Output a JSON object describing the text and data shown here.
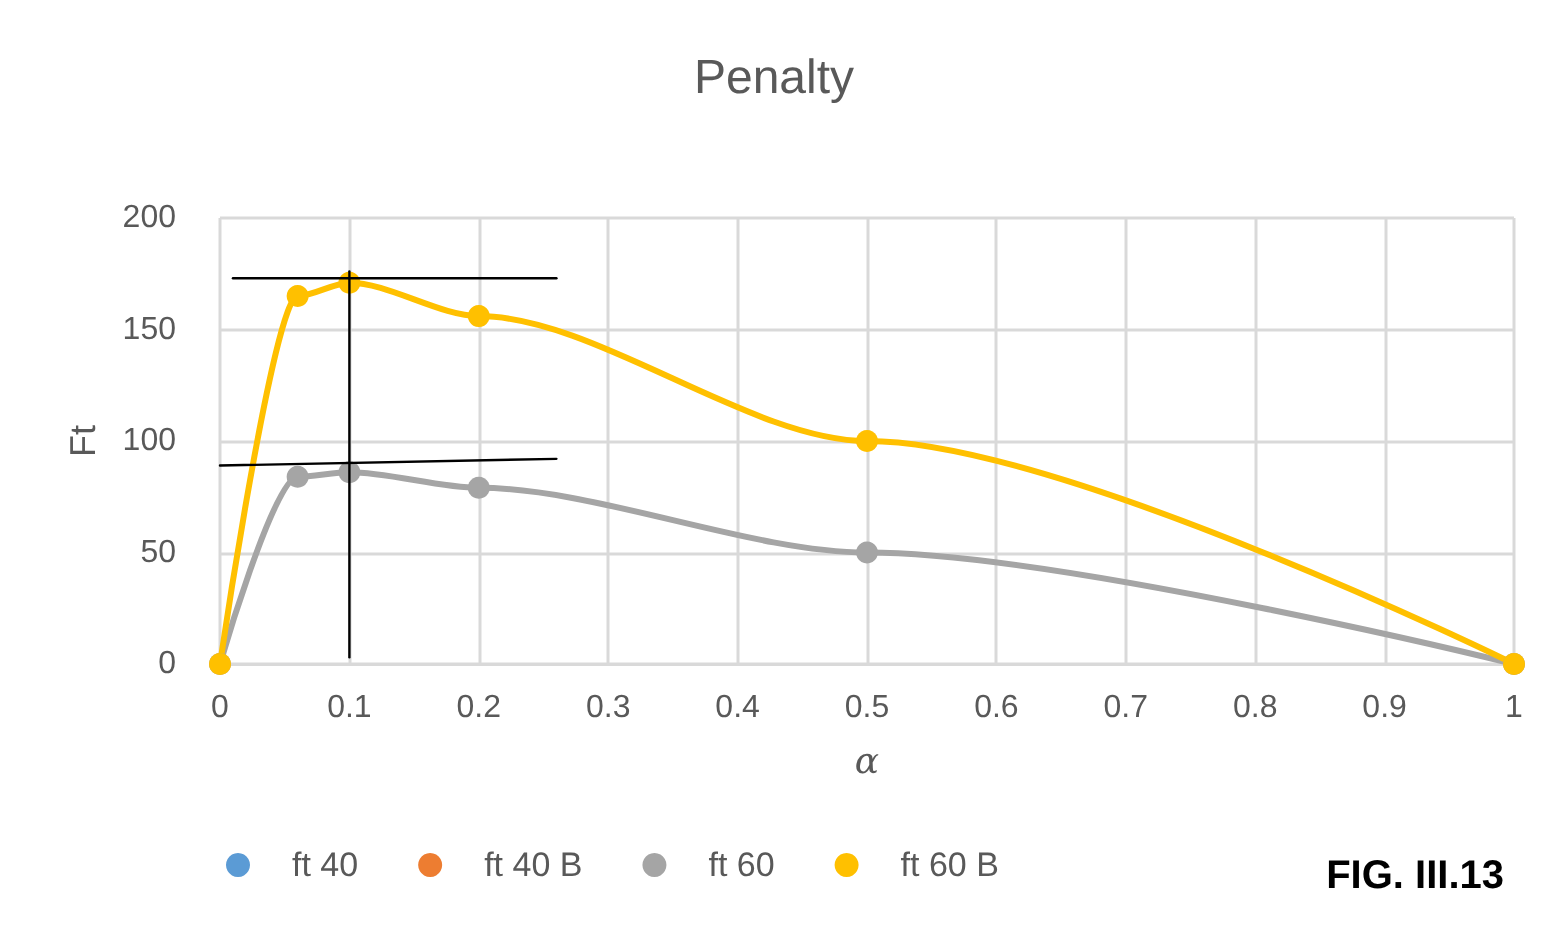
{
  "chart_data": {
    "type": "line",
    "title": "Penalty",
    "xlabel": "α",
    "ylabel": "Ft",
    "x": [
      0,
      0.06,
      0.1,
      0.2,
      0.5,
      1
    ],
    "series": [
      {
        "name": "ft 40",
        "color": "#5b9bd5",
        "values": [
          null,
          null,
          null,
          null,
          null,
          null
        ]
      },
      {
        "name": "ft 40 B",
        "color": "#ed7d31",
        "values": [
          null,
          null,
          null,
          null,
          null,
          null
        ]
      },
      {
        "name": "ft 60",
        "color": "#a5a5a5",
        "values": [
          0,
          84,
          86,
          79,
          50,
          0
        ]
      },
      {
        "name": "ft 60 B",
        "color": "#ffc000",
        "values": [
          0,
          165,
          171,
          156,
          100,
          0
        ]
      },
      {
        "type": "line",
        "color": "#000000",
        "marker": "none",
        "x": [
          0.01,
          0.26
        ],
        "values": [
          173,
          173
        ]
      },
      {
        "type": "line",
        "color": "#000000",
        "marker": "none",
        "x": [
          0,
          0.26
        ],
        "values": [
          89,
          92
        ]
      },
      {
        "type": "line",
        "color": "#000000",
        "marker": "none",
        "x": [
          0.1,
          0.1
        ],
        "values": [
          3,
          176
        ]
      }
    ],
    "xlim": [
      0,
      1
    ],
    "xticks": [
      0,
      0.1,
      0.2,
      0.3,
      0.4,
      0.5,
      0.6,
      0.7,
      0.8,
      0.9,
      1
    ],
    "ylim": [
      0,
      200
    ],
    "yticks": [
      0,
      50,
      100,
      150,
      200
    ],
    "grid": true,
    "legend": "bottom",
    "marker": "circle",
    "annotations": [
      "FIG. III.13"
    ]
  }
}
